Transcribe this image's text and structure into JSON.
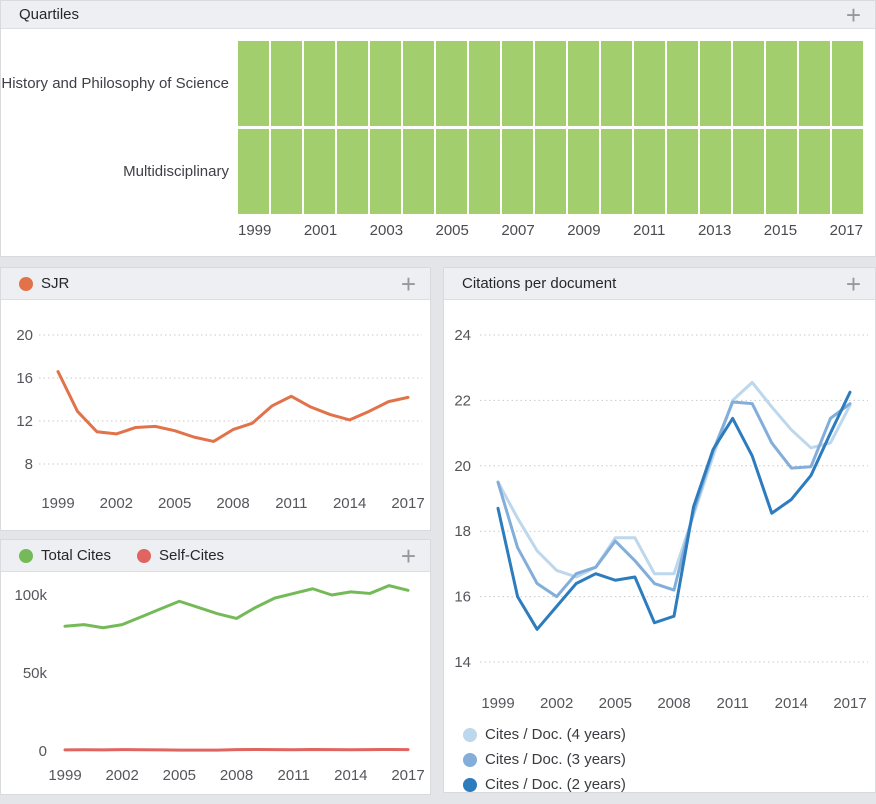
{
  "icons": {
    "expand": "+"
  },
  "panels": {
    "quartiles": {
      "title": "Quartiles"
    },
    "sjr": {
      "legend": [
        {
          "label": "SJR",
          "color": "#e2724a"
        }
      ]
    },
    "total_cites": {
      "legend": [
        {
          "label": "Total Cites",
          "color": "#74ba58"
        },
        {
          "label": "Self-Cites",
          "color": "#e06460"
        }
      ]
    },
    "citations_per_document": {
      "title": "Citations per document",
      "legend": [
        {
          "label": "Cites / Doc. (4 years)",
          "color": "#bdd7ec"
        },
        {
          "label": "Cites / Doc. (3 years)",
          "color": "#82aed9"
        },
        {
          "label": "Cites / Doc. (2 years)",
          "color": "#2c7cbe"
        }
      ]
    }
  },
  "chart_data": [
    {
      "id": "quartiles",
      "type": "heatmap",
      "title": "Quartiles",
      "x": [
        1999,
        2000,
        2001,
        2002,
        2003,
        2004,
        2005,
        2006,
        2007,
        2008,
        2009,
        2010,
        2011,
        2012,
        2013,
        2014,
        2015,
        2016,
        2017
      ],
      "xticks": [
        1999,
        2001,
        2003,
        2005,
        2007,
        2009,
        2011,
        2013,
        2015,
        2017
      ],
      "colors": {
        "Q1": "#a2ce6e"
      },
      "rows": [
        {
          "label": "History and Philosophy of Science",
          "values": [
            "Q1",
            "Q1",
            "Q1",
            "Q1",
            "Q1",
            "Q1",
            "Q1",
            "Q1",
            "Q1",
            "Q1",
            "Q1",
            "Q1",
            "Q1",
            "Q1",
            "Q1",
            "Q1",
            "Q1",
            "Q1",
            "Q1"
          ]
        },
        {
          "label": "Multidisciplinary",
          "values": [
            "Q1",
            "Q1",
            "Q1",
            "Q1",
            "Q1",
            "Q1",
            "Q1",
            "Q1",
            "Q1",
            "Q1",
            "Q1",
            "Q1",
            "Q1",
            "Q1",
            "Q1",
            "Q1",
            "Q1",
            "Q1",
            "Q1"
          ]
        }
      ]
    },
    {
      "id": "sjr",
      "type": "line",
      "title": "SJR",
      "grid": true,
      "x": [
        1999,
        2000,
        2001,
        2002,
        2003,
        2004,
        2005,
        2006,
        2007,
        2008,
        2009,
        2010,
        2011,
        2012,
        2013,
        2014,
        2015,
        2016,
        2017
      ],
      "xticks": [
        1999,
        2002,
        2005,
        2008,
        2011,
        2014,
        2017
      ],
      "yticks": [
        {
          "v": 8,
          "label": "8"
        },
        {
          "v": 12,
          "label": "12"
        },
        {
          "v": 16,
          "label": "16"
        },
        {
          "v": 20,
          "label": "20"
        }
      ],
      "ylim": [
        6.5,
        21.5
      ],
      "series": [
        {
          "name": "SJR",
          "color": "#e2724a",
          "values": [
            16.6,
            12.9,
            11.0,
            10.8,
            11.4,
            11.5,
            11.1,
            10.5,
            10.1,
            11.2,
            11.8,
            13.4,
            14.3,
            13.3,
            12.6,
            12.1,
            12.9,
            13.8,
            14.2
          ]
        }
      ]
    },
    {
      "id": "cites",
      "type": "line",
      "title": "Total Cites / Self-Cites",
      "grid": false,
      "x": [
        1999,
        2000,
        2001,
        2002,
        2003,
        2004,
        2005,
        2006,
        2007,
        2008,
        2009,
        2010,
        2011,
        2012,
        2013,
        2014,
        2015,
        2016,
        2017
      ],
      "xticks": [
        1999,
        2002,
        2005,
        2008,
        2011,
        2014,
        2017
      ],
      "yticks": [
        {
          "v": 0,
          "label": "0"
        },
        {
          "v": 50000,
          "label": "50k"
        },
        {
          "v": 100000,
          "label": "100k"
        }
      ],
      "ylim": [
        0,
        113000
      ],
      "series": [
        {
          "name": "Total Cites",
          "color": "#74ba58",
          "values": [
            80000,
            81000,
            79000,
            81000,
            86000,
            91000,
            96000,
            92000,
            88000,
            85000,
            92000,
            98000,
            101000,
            104000,
            100000,
            102000,
            101000,
            106000,
            103000
          ]
        },
        {
          "name": "Self-Cites",
          "color": "#e06460",
          "values": [
            700,
            800,
            700,
            900,
            800,
            700,
            600,
            600,
            600,
            900,
            1000,
            900,
            800,
            1000,
            900,
            800,
            900,
            1000,
            900
          ]
        }
      ]
    },
    {
      "id": "cpd",
      "type": "line",
      "title": "Citations per document",
      "grid": true,
      "x": [
        1999,
        2000,
        2001,
        2002,
        2003,
        2004,
        2005,
        2006,
        2007,
        2008,
        2009,
        2010,
        2011,
        2012,
        2013,
        2014,
        2015,
        2016,
        2017
      ],
      "xticks": [
        1999,
        2002,
        2005,
        2008,
        2011,
        2014,
        2017
      ],
      "yticks": [
        {
          "v": 14,
          "label": "14"
        },
        {
          "v": 16,
          "label": "16"
        },
        {
          "v": 18,
          "label": "18"
        },
        {
          "v": 20,
          "label": "20"
        },
        {
          "v": 22,
          "label": "22"
        },
        {
          "v": 24,
          "label": "24"
        }
      ],
      "ylim": [
        13.5,
        24.7
      ],
      "series": [
        {
          "name": "Cites / Doc. (4 years)",
          "color": "#bdd7ec",
          "values": [
            19.5,
            18.4,
            17.4,
            16.8,
            16.6,
            16.9,
            17.8,
            17.8,
            16.7,
            16.7,
            18.5,
            20.3,
            22.0,
            22.55,
            21.8,
            21.1,
            20.55,
            20.7,
            21.85
          ]
        },
        {
          "name": "Cites / Doc. (3 years)",
          "color": "#82aed9",
          "values": [
            19.5,
            17.5,
            16.4,
            16.0,
            16.7,
            16.9,
            17.7,
            17.1,
            16.4,
            16.2,
            18.6,
            20.45,
            21.95,
            21.9,
            20.7,
            19.93,
            19.97,
            21.45,
            21.9
          ]
        },
        {
          "name": "Cites / Doc. (2 years)",
          "color": "#2c7cbe",
          "values": [
            18.7,
            16.0,
            15.0,
            15.7,
            16.4,
            16.7,
            16.5,
            16.6,
            15.2,
            15.4,
            18.75,
            20.5,
            21.45,
            20.3,
            18.55,
            18.97,
            19.7,
            21.0,
            22.25
          ]
        }
      ]
    }
  ]
}
